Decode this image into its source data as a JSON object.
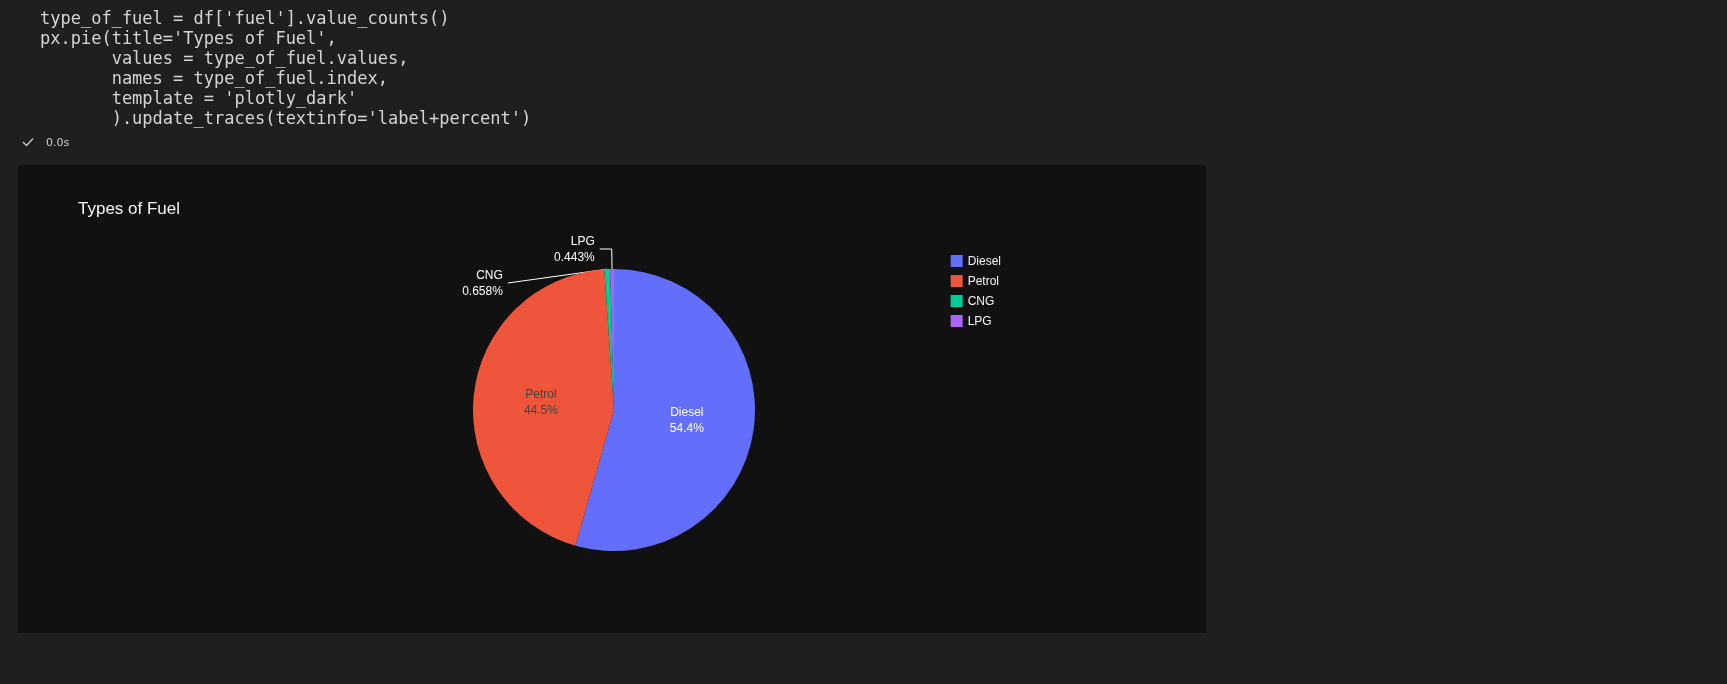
{
  "chart_data": {
    "type": "pie",
    "title": "Types of Fuel",
    "categories": [
      "Diesel",
      "Petrol",
      "CNG",
      "LPG"
    ],
    "values": [
      54.4,
      44.5,
      0.658,
      0.443
    ],
    "colors": [
      "#636efa",
      "#ef553b",
      "#00cc96",
      "#ab63fa"
    ],
    "value_labels": [
      "54.4%",
      "44.5%",
      "0.658%",
      "0.443%"
    ],
    "legend": "top right",
    "annotations": [
      "type_of_fuel = df['fuel'].value_counts()",
      "px.pie(title='Types of Fuel',",
      "       values = type_of_fuel.values,",
      "       names = type_of_fuel.index,",
      "       template = 'plotly_dark'",
      "       ).update_traces(textinfo='label+percent')",
      "0.0s"
    ]
  }
}
